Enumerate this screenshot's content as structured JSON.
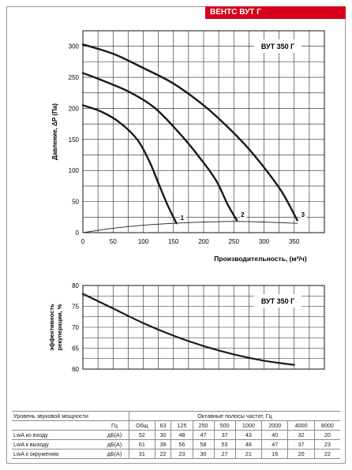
{
  "brand": "ВЕНТС ВУТ Г",
  "chart_data": [
    {
      "type": "line",
      "title": "ВУТ 350 Г",
      "ylabel": "Давление, ΔР (Па)",
      "xlabel": "Производительность, (м³/ч)",
      "xlim": [
        0,
        400
      ],
      "ylim": [
        0,
        325
      ],
      "xticks": [
        0,
        50,
        100,
        150,
        200,
        250,
        300,
        350
      ],
      "yticks": [
        0,
        50,
        100,
        150,
        200,
        250,
        300
      ],
      "grid": true,
      "series": [
        {
          "name": "1",
          "x": [
            0,
            30,
            60,
            90,
            110,
            125,
            140,
            155
          ],
          "y": [
            205,
            195,
            178,
            150,
            115,
            80,
            45,
            15
          ]
        },
        {
          "name": "2",
          "x": [
            0,
            40,
            80,
            120,
            160,
            190,
            220,
            240,
            255
          ],
          "y": [
            257,
            242,
            225,
            200,
            160,
            125,
            85,
            45,
            20
          ]
        },
        {
          "name": "3",
          "x": [
            0,
            50,
            100,
            150,
            200,
            240,
            270,
            300,
            330,
            355
          ],
          "y": [
            303,
            288,
            265,
            240,
            205,
            170,
            140,
            105,
            65,
            20
          ]
        },
        {
          "name": "",
          "x": [
            0,
            50,
            100,
            150,
            200,
            250,
            300,
            355
          ],
          "y": [
            0,
            7,
            12,
            15,
            17,
            18,
            17,
            15
          ]
        }
      ]
    },
    {
      "type": "line",
      "title": "ВУТ 350 Г",
      "ylabel": "эффективность рекуперации, %",
      "xlim": [
        0,
        400
      ],
      "ylim": [
        60,
        80
      ],
      "yticks": [
        60,
        65,
        70,
        75,
        80
      ],
      "grid": true,
      "series": [
        {
          "name": "",
          "x": [
            0,
            50,
            100,
            150,
            200,
            250,
            300,
            350
          ],
          "y": [
            78,
            74.5,
            71,
            68,
            65.5,
            63.5,
            62,
            61
          ]
        }
      ]
    }
  ],
  "sound_table": {
    "title": "Уровень звуковой мощности",
    "bands_title": "Октавные полосы частот, Гц",
    "unit_header": "Гц",
    "columns": [
      "Общ",
      "63",
      "125",
      "250",
      "500",
      "1000",
      "2000",
      "4000",
      "8000"
    ],
    "rows": [
      {
        "label": "LwA ко входу",
        "unit": "дБ(А)",
        "values": [
          "52",
          "30",
          "48",
          "47",
          "37",
          "43",
          "40",
          "32",
          "20"
        ]
      },
      {
        "label": "LwA к выходу",
        "unit": "дБ(А)",
        "values": [
          "61",
          "39",
          "56",
          "58",
          "53",
          "48",
          "47",
          "37",
          "23"
        ]
      },
      {
        "label": "LwA к окружению",
        "unit": "дБ(А)",
        "values": [
          "31",
          "22",
          "23",
          "30",
          "27",
          "21",
          "16",
          "20",
          "22"
        ]
      }
    ]
  },
  "colors": {
    "brand": "#d6001c",
    "curve": "#1a1a1a",
    "grid": "#222222"
  }
}
